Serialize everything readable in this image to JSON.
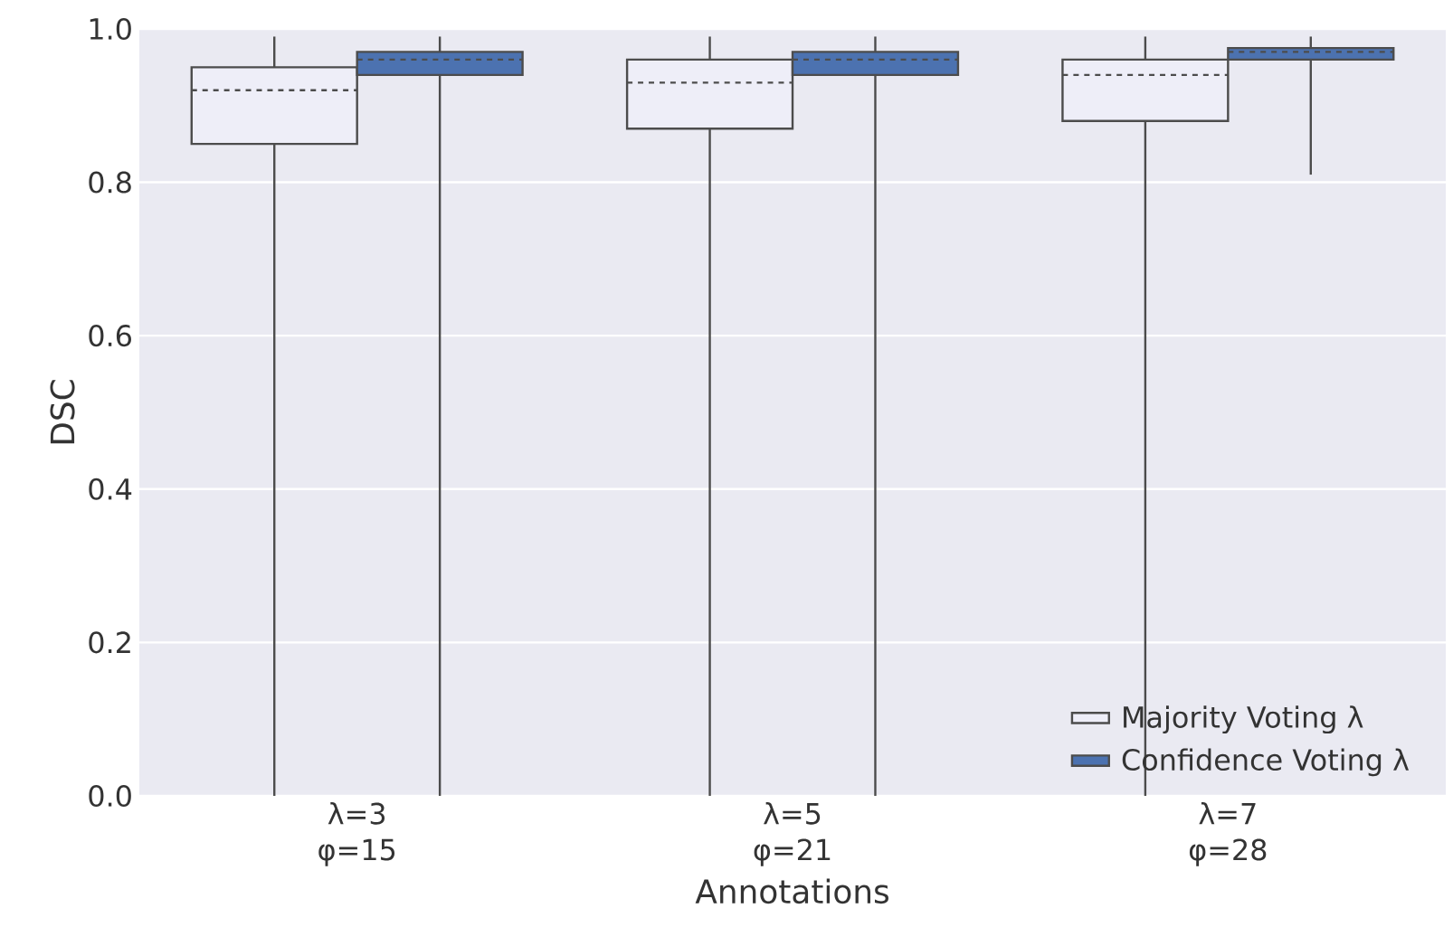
{
  "chart_data": {
    "type": "box",
    "xlabel": "Annotations",
    "ylabel": "DSC",
    "categories": [
      "λ=3 φ=15",
      "λ=5 φ=21",
      "λ=7 φ=28"
    ],
    "series": [
      {
        "name": "Majority Voting λ",
        "color": "#eeeef8",
        "boxes": [
          {
            "low": 0.0,
            "q1": 0.85,
            "median": 0.92,
            "q3": 0.95,
            "high": 0.99
          },
          {
            "low": 0.0,
            "q1": 0.87,
            "median": 0.93,
            "q3": 0.96,
            "high": 0.99
          },
          {
            "low": 0.0,
            "q1": 0.88,
            "median": 0.94,
            "q3": 0.96,
            "high": 0.99
          }
        ]
      },
      {
        "name": "Confidence Voting λ",
        "color": "#4c72b0",
        "boxes": [
          {
            "low": 0.0,
            "q1": 0.94,
            "median": 0.96,
            "q3": 0.97,
            "high": 0.99
          },
          {
            "low": 0.0,
            "q1": 0.94,
            "median": 0.96,
            "q3": 0.97,
            "high": 0.99
          },
          {
            "low": 0.81,
            "q1": 0.96,
            "median": 0.97,
            "q3": 0.975,
            "high": 0.99
          }
        ]
      }
    ],
    "ylim": [
      0,
      1
    ],
    "yticks": [
      {
        "value": 0,
        "label": "0.0"
      },
      {
        "value": 0.2,
        "label": "0.2"
      },
      {
        "value": 0.4,
        "label": "0.4"
      },
      {
        "value": 0.6,
        "label": "0.6"
      },
      {
        "value": 0.8,
        "label": "0.8"
      },
      {
        "value": 1,
        "label": "1.0"
      }
    ],
    "grid": "y",
    "legend": "bottom right"
  }
}
